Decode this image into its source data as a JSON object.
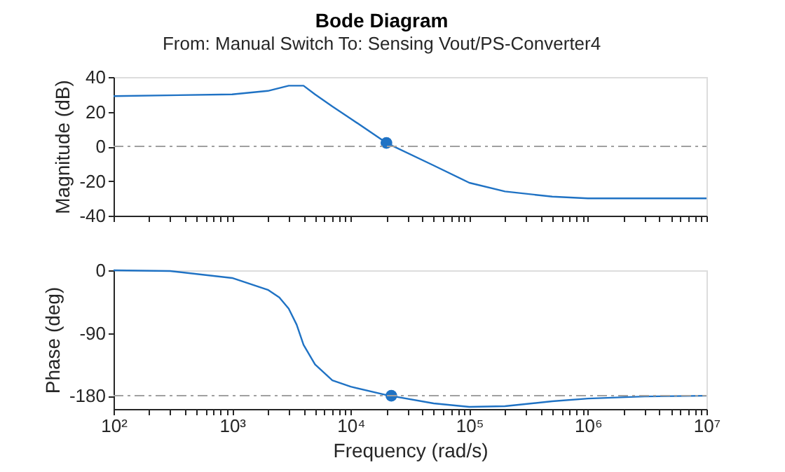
{
  "chart_data": [
    {
      "type": "line",
      "title": "Bode Diagram",
      "subtitle": "From: Manual Switch  To: Sensing Vout/PS-Converter4",
      "ylabel": "Magnitude (dB)",
      "log": "x",
      "tick_labels": "y",
      "grid": false,
      "xlim": [
        100,
        10000000
      ],
      "xticks": [
        {
          "value": 100,
          "label": null
        },
        {
          "value": 200,
          "label": null
        },
        {
          "value": 300,
          "label": null
        },
        {
          "value": 400,
          "label": null
        },
        {
          "value": 500,
          "label": null
        },
        {
          "value": 600,
          "label": null
        },
        {
          "value": 700,
          "label": null
        },
        {
          "value": 800,
          "label": null
        },
        {
          "value": 900,
          "label": null
        },
        {
          "value": 1000,
          "label": null
        },
        {
          "value": 2000,
          "label": null
        },
        {
          "value": 3000,
          "label": null
        },
        {
          "value": 4000,
          "label": null
        },
        {
          "value": 5000,
          "label": null
        },
        {
          "value": 6000,
          "label": null
        },
        {
          "value": 7000,
          "label": null
        },
        {
          "value": 8000,
          "label": null
        },
        {
          "value": 9000,
          "label": null
        },
        {
          "value": 10000,
          "label": null
        },
        {
          "value": 20000,
          "label": null
        },
        {
          "value": 30000,
          "label": null
        },
        {
          "value": 40000,
          "label": null
        },
        {
          "value": 50000,
          "label": null
        },
        {
          "value": 60000,
          "label": null
        },
        {
          "value": 70000,
          "label": null
        },
        {
          "value": 80000,
          "label": null
        },
        {
          "value": 90000,
          "label": null
        },
        {
          "value": 100000,
          "label": null
        },
        {
          "value": 200000,
          "label": null
        },
        {
          "value": 300000,
          "label": null
        },
        {
          "value": 400000,
          "label": null
        },
        {
          "value": 500000,
          "label": null
        },
        {
          "value": 600000,
          "label": null
        },
        {
          "value": 700000,
          "label": null
        },
        {
          "value": 800000,
          "label": null
        },
        {
          "value": 900000,
          "label": null
        },
        {
          "value": 1000000,
          "label": null
        },
        {
          "value": 2000000,
          "label": null
        },
        {
          "value": 3000000,
          "label": null
        },
        {
          "value": 4000000,
          "label": null
        },
        {
          "value": 5000000,
          "label": null
        },
        {
          "value": 6000000,
          "label": null
        },
        {
          "value": 7000000,
          "label": null
        },
        {
          "value": 8000000,
          "label": null
        },
        {
          "value": 9000000,
          "label": null
        },
        {
          "value": 10000000,
          "label": null
        }
      ],
      "ylim": [
        -40,
        40
      ],
      "yticks": [
        -40,
        -20,
        0,
        20,
        40
      ],
      "ref_lines": [
        {
          "axis": "y",
          "value": 0,
          "color": "#a0a0a0",
          "line_style": "dashed"
        }
      ],
      "series": [
        {
          "color": "#1f72c4",
          "marker": "none",
          "line_style": "solid",
          "x": [
            100,
            1000,
            2000,
            3000,
            3500,
            4000,
            5000,
            7000,
            10000,
            20000,
            50000,
            100000,
            200000,
            500000,
            1000000,
            10000000
          ],
          "values": [
            29,
            30,
            32,
            35,
            35,
            35,
            30,
            23,
            16,
            2,
            -11,
            -21,
            -26,
            -29,
            -30,
            -30
          ]
        },
        {
          "type": "scatter",
          "color": "#1f72c4",
          "marker": "circle",
          "x": [
            20000
          ],
          "values": [
            2
          ]
        }
      ]
    },
    {
      "type": "line",
      "xlabel": "Frequency (rad/s)",
      "ylabel": "Phase (deg)",
      "log": "x",
      "grid": false,
      "xlim": [
        100,
        10000000
      ],
      "xticks": [
        {
          "value": 100,
          "label": "10²"
        },
        {
          "value": 200,
          "label": null
        },
        {
          "value": 300,
          "label": null
        },
        {
          "value": 400,
          "label": null
        },
        {
          "value": 500,
          "label": null
        },
        {
          "value": 600,
          "label": null
        },
        {
          "value": 700,
          "label": null
        },
        {
          "value": 800,
          "label": null
        },
        {
          "value": 900,
          "label": null
        },
        {
          "value": 1000,
          "label": "10³"
        },
        {
          "value": 2000,
          "label": null
        },
        {
          "value": 3000,
          "label": null
        },
        {
          "value": 4000,
          "label": null
        },
        {
          "value": 5000,
          "label": null
        },
        {
          "value": 6000,
          "label": null
        },
        {
          "value": 7000,
          "label": null
        },
        {
          "value": 8000,
          "label": null
        },
        {
          "value": 9000,
          "label": null
        },
        {
          "value": 10000,
          "label": "10⁴"
        },
        {
          "value": 20000,
          "label": null
        },
        {
          "value": 30000,
          "label": null
        },
        {
          "value": 40000,
          "label": null
        },
        {
          "value": 50000,
          "label": null
        },
        {
          "value": 60000,
          "label": null
        },
        {
          "value": 70000,
          "label": null
        },
        {
          "value": 80000,
          "label": null
        },
        {
          "value": 90000,
          "label": null
        },
        {
          "value": 100000,
          "label": "10⁵"
        },
        {
          "value": 200000,
          "label": null
        },
        {
          "value": 300000,
          "label": null
        },
        {
          "value": 400000,
          "label": null
        },
        {
          "value": 500000,
          "label": null
        },
        {
          "value": 600000,
          "label": null
        },
        {
          "value": 700000,
          "label": null
        },
        {
          "value": 800000,
          "label": null
        },
        {
          "value": 900000,
          "label": null
        },
        {
          "value": 1000000,
          "label": "10⁶"
        },
        {
          "value": 2000000,
          "label": null
        },
        {
          "value": 3000000,
          "label": null
        },
        {
          "value": 4000000,
          "label": null
        },
        {
          "value": 5000000,
          "label": null
        },
        {
          "value": 6000000,
          "label": null
        },
        {
          "value": 7000000,
          "label": null
        },
        {
          "value": 8000000,
          "label": null
        },
        {
          "value": 9000000,
          "label": null
        },
        {
          "value": 10000000,
          "label": "10⁷"
        }
      ],
      "ylim": [
        -199,
        0
      ],
      "yticks": [
        -180,
        -90,
        0
      ],
      "ref_lines": [
        {
          "axis": "y",
          "value": -180,
          "color": "#a0a0a0",
          "line_style": "dashed"
        }
      ],
      "series": [
        {
          "color": "#1f72c4",
          "marker": "none",
          "line_style": "solid",
          "x": [
            100,
            300,
            1000,
            2000,
            2500,
            3000,
            3500,
            4000,
            5000,
            7000,
            10000,
            20000,
            50000,
            100000,
            200000,
            500000,
            1000000,
            3000000,
            10000000
          ],
          "values": [
            0,
            -1,
            -11,
            -28,
            -39,
            -55,
            -78,
            -107,
            -135,
            -158,
            -167,
            -179,
            -191,
            -196,
            -195,
            -188,
            -184,
            -181,
            -180
          ]
        },
        {
          "type": "scatter",
          "color": "#1f72c4",
          "marker": "circle",
          "x": [
            22000
          ],
          "values": [
            -180
          ]
        }
      ]
    }
  ]
}
